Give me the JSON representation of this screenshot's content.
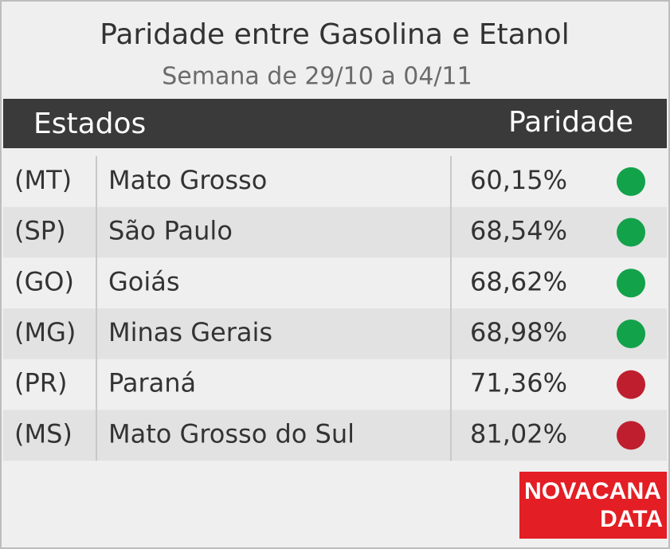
{
  "header": {
    "title": "Paridade entre Gasolina e Etanol",
    "subtitle": "Semana de 29/10 a 04/11"
  },
  "table": {
    "columns": [
      "Estados",
      "Paridade"
    ],
    "rows": [
      {
        "code": "(MT)",
        "state": "Mato Grosso",
        "parity": "60,15%",
        "dot_color": "#12a24a"
      },
      {
        "code": "(SP)",
        "state": "São Paulo",
        "parity": "68,54%",
        "dot_color": "#12a24a"
      },
      {
        "code": "(GO)",
        "state": "Goiás",
        "parity": "68,62%",
        "dot_color": "#12a24a"
      },
      {
        "code": "(MG)",
        "state": "Minas Gerais",
        "parity": "68,98%",
        "dot_color": "#12a24a"
      },
      {
        "code": "(PR)",
        "state": "Paraná",
        "parity": "71,36%",
        "dot_color": "#bf1e2e"
      },
      {
        "code": "(MS)",
        "state": "Mato Grosso do Sul",
        "parity": "81,02%",
        "dot_color": "#bf1e2e"
      }
    ]
  },
  "logo": {
    "line1": "NOVACANA",
    "line2": "DATA"
  }
}
